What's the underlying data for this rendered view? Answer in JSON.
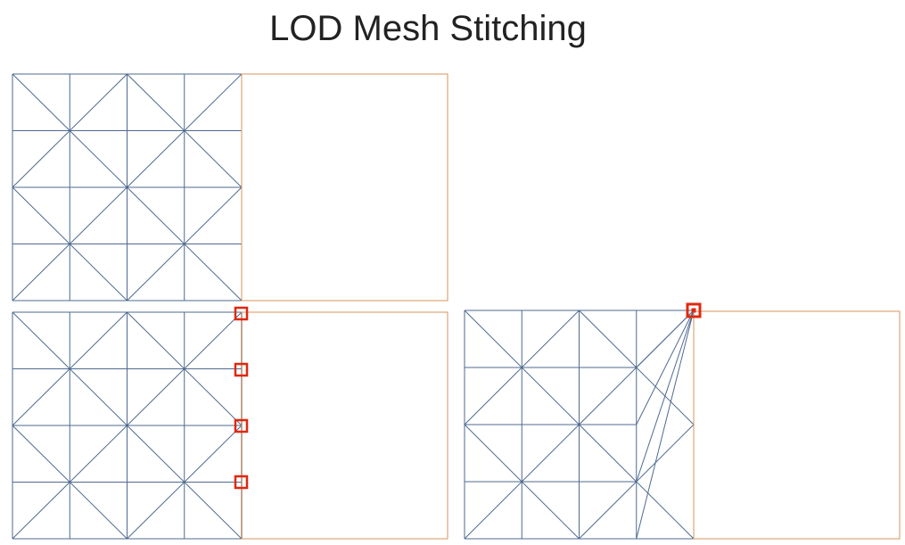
{
  "title": "LOD Mesh Stitching",
  "colors": {
    "mesh": "#4f6a8f",
    "neighbor_outline": "#d9935a",
    "marker": "#e02810"
  }
}
